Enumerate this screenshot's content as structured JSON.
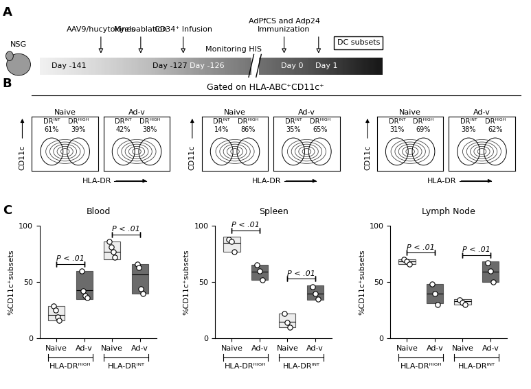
{
  "panel_a": {
    "label": "A",
    "strain": "NSG",
    "days": [
      "Day -141",
      "Day -127",
      "Day -126",
      "Day 0",
      "Day 1"
    ],
    "events": [
      [
        "AAV9/hucytokines"
      ],
      [
        "Myeloablation"
      ],
      [
        "CD34⁺ Infusion"
      ],
      [
        "AdPfCS and Adp24",
        "Immunization"
      ]
    ],
    "monitoring": "Monitoring HIS",
    "readout": "DC subsets"
  },
  "panel_b": {
    "label": "B",
    "gate": "Gated on HLA-ABC⁺CD11c⁺",
    "x_label": "HLA-DR",
    "y_label": "CD11c",
    "pairs": [
      [
        {
          "title": "Naive",
          "gates": [
            {
              "name": "DRᴵᴺᵀ",
              "percent": "61%"
            },
            {
              "name": "DRᴴᴵᴳᴴ",
              "percent": "39%"
            }
          ]
        },
        {
          "title": "Ad-v",
          "gates": [
            {
              "name": "DRᴵᴺᵀ",
              "percent": "42%"
            },
            {
              "name": "DRᴴᴵᴳᴴ",
              "percent": "38%"
            }
          ]
        }
      ],
      [
        {
          "title": "Naive",
          "gates": [
            {
              "name": "DRᴵᴺᵀ",
              "percent": "14%"
            },
            {
              "name": "DRᴴᴵᴳᴴ",
              "percent": "86%"
            }
          ]
        },
        {
          "title": "Ad-v",
          "gates": [
            {
              "name": "DRᴵᴺᵀ",
              "percent": "35%"
            },
            {
              "name": "DRᴴᴵᴳᴴ",
              "percent": "65%"
            }
          ]
        }
      ],
      [
        {
          "title": "Naive",
          "gates": [
            {
              "name": "DRᴵᴺᵀ",
              "percent": "31%"
            },
            {
              "name": "DRᴴᴵᴳᴴ",
              "percent": "69%"
            }
          ]
        },
        {
          "title": "Ad-v",
          "gates": [
            {
              "name": "DRᴵᴺᵀ",
              "percent": "38%"
            },
            {
              "name": "DRᴴᴵᴳᴴ",
              "percent": "62%"
            }
          ]
        }
      ]
    ]
  },
  "panel_c_label": "C",
  "chart_data": [
    {
      "type": "box",
      "title": "Blood",
      "ylabel": "%CD11c⁺subsets",
      "categories": [
        "Naive",
        "Ad-v",
        "Naive",
        "Ad-v"
      ],
      "groups": [
        "HLA-DRᴴᴵᴳᴴ",
        "HLA-DRᴵᴺᵀ"
      ],
      "colors": [
        "#ededed",
        "#6b6b6b",
        "#ededed",
        "#6b6b6b"
      ],
      "ylim": [
        0,
        100
      ],
      "yticks": [
        0,
        50,
        100
      ],
      "boxes": [
        {
          "low": 16,
          "median": 21,
          "high": 29,
          "points": [
            29,
            25,
            19,
            16
          ]
        },
        {
          "low": 35,
          "median": 43,
          "high": 60,
          "points": [
            60,
            42,
            38,
            36
          ]
        },
        {
          "low": 70,
          "median": 77,
          "high": 86,
          "points": [
            86,
            81,
            77,
            72
          ]
        },
        {
          "low": 40,
          "median": 57,
          "high": 66,
          "points": [
            66,
            63,
            44,
            40
          ]
        }
      ],
      "annotations": [
        {
          "text": "P < .01",
          "between": [
            0,
            1
          ]
        },
        {
          "text": "P < .01",
          "between": [
            2,
            3
          ]
        }
      ]
    },
    {
      "type": "box",
      "title": "Spleen",
      "ylabel": "%CD11c⁺subsets",
      "categories": [
        "Naive",
        "Ad-v",
        "Naive",
        "Ad-v"
      ],
      "groups": [
        "HLA-DRᴴᴵᴳᴴ",
        "HLA-DRᴵᴺᵀ"
      ],
      "colors": [
        "#ededed",
        "#6b6b6b",
        "#ededed",
        "#6b6b6b"
      ],
      "ylim": [
        0,
        100
      ],
      "yticks": [
        0,
        50,
        100
      ],
      "boxes": [
        {
          "low": 77,
          "median": 85,
          "high": 90,
          "points": [
            88,
            86,
            77
          ]
        },
        {
          "low": 52,
          "median": 59,
          "high": 65,
          "points": [
            65,
            60,
            52
          ]
        },
        {
          "low": 10,
          "median": 15,
          "high": 22,
          "points": [
            22,
            14,
            10
          ]
        },
        {
          "low": 34,
          "median": 40,
          "high": 47,
          "points": [
            46,
            40,
            35
          ]
        }
      ],
      "annotations": [
        {
          "text": "P < .01",
          "between": [
            0,
            1
          ]
        },
        {
          "text": "P < .01",
          "between": [
            2,
            3
          ]
        }
      ]
    },
    {
      "type": "box",
      "title": "Lymph Node",
      "ylabel": "%CD11c⁺subsets",
      "categories": [
        "Naive",
        "Ad-v",
        "Naive",
        "Ad-v"
      ],
      "groups": [
        "HLA-DRᴴᴵᴳᴴ",
        "HLA-DRᴵᴺᵀ"
      ],
      "colors": [
        "#ededed",
        "#6b6b6b",
        "#ededed",
        "#6b6b6b"
      ],
      "ylim": [
        0,
        100
      ],
      "yticks": [
        0,
        50,
        100
      ],
      "boxes": [
        {
          "low": 66,
          "median": 68,
          "high": 70,
          "points": [
            70,
            68,
            66
          ]
        },
        {
          "low": 31,
          "median": 40,
          "high": 48,
          "points": [
            48,
            40,
            30
          ]
        },
        {
          "low": 30,
          "median": 33,
          "high": 35,
          "points": [
            34,
            32,
            30
          ]
        },
        {
          "low": 50,
          "median": 59,
          "high": 68,
          "points": [
            67,
            60,
            50
          ]
        }
      ],
      "annotations": [
        {
          "text": "P < .01",
          "between": [
            0,
            1
          ]
        },
        {
          "text": "P < .01",
          "between": [
            2,
            3
          ]
        }
      ]
    }
  ]
}
